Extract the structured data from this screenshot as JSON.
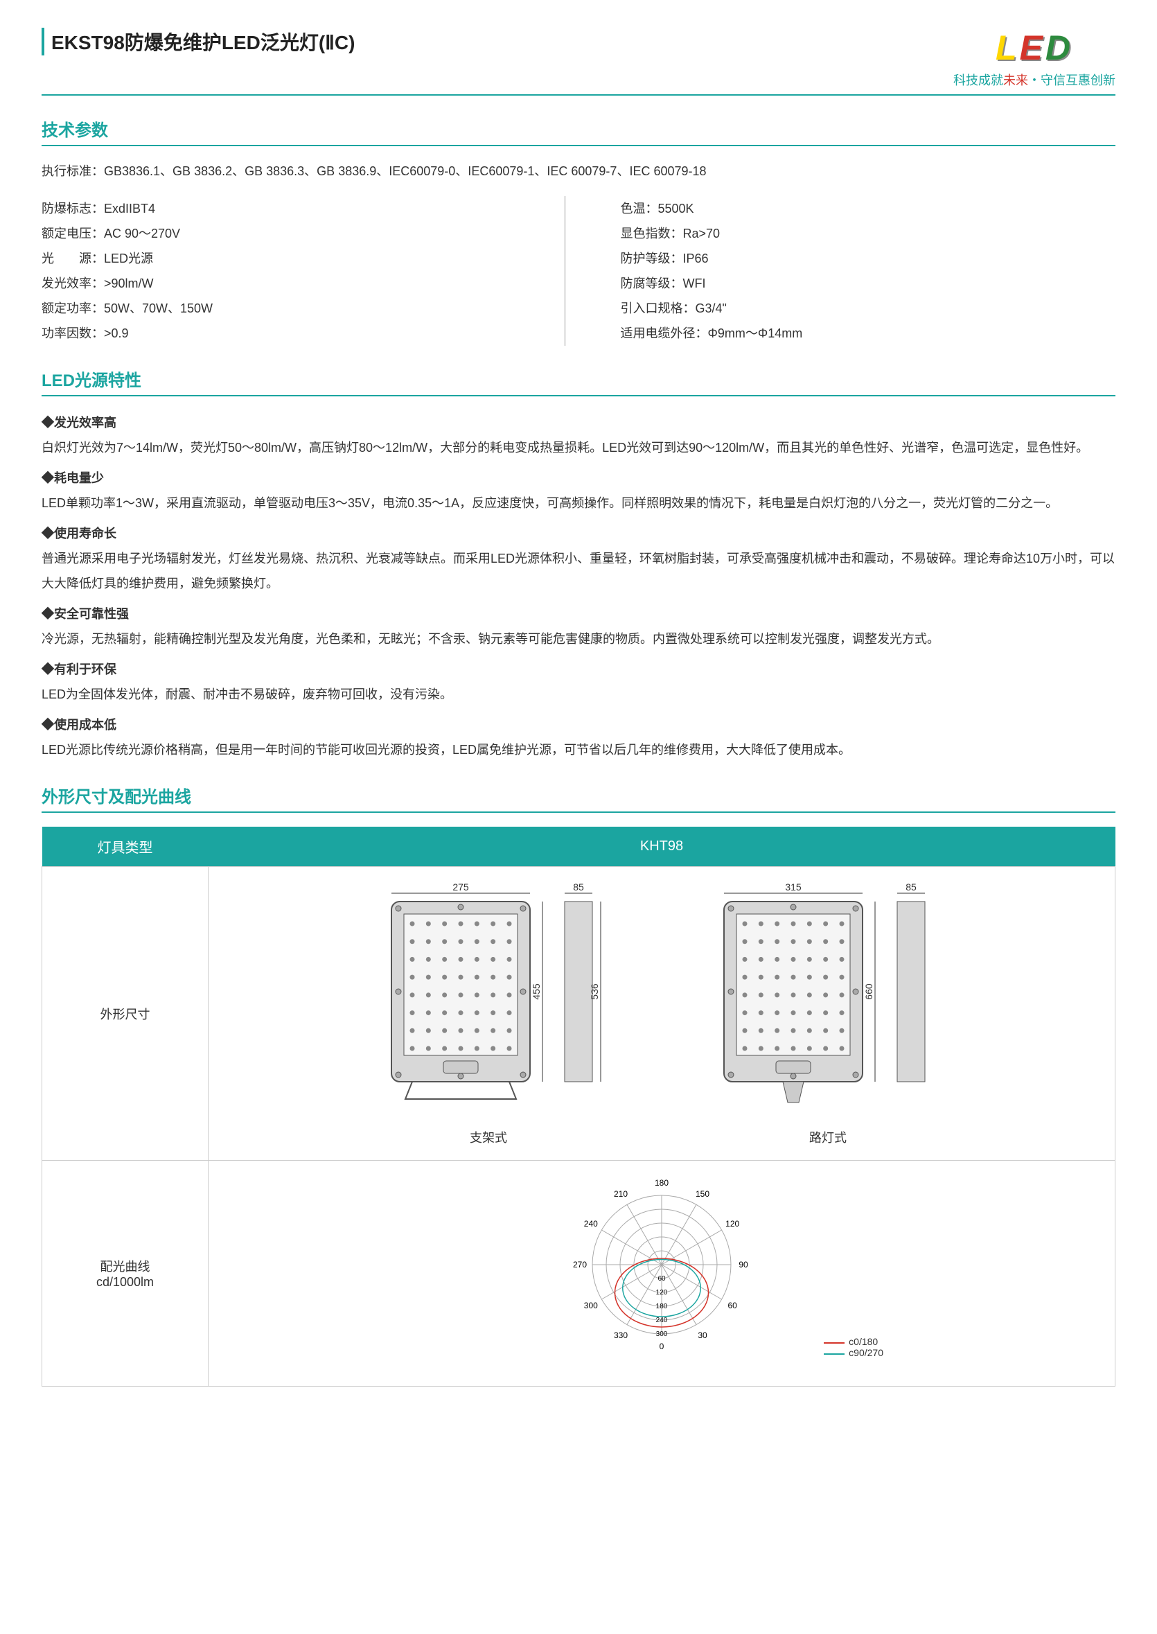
{
  "header": {
    "title": "EKST98防爆免维护LED泛光灯(ⅡC)",
    "logo_l": "L",
    "logo_e": "E",
    "logo_d": "D",
    "slogan_pre": "科技成就",
    "slogan_red": "未来",
    "slogan_post": "・守信互惠创新"
  },
  "sections": {
    "tech": "技术参数",
    "led": "LED光源特性",
    "dim": "外形尺寸及配光曲线"
  },
  "standard": "执行标准：GB3836.1、GB 3836.2、GB 3836.3、GB 3836.9、IEC60079-0、IEC60079-1、IEC 60079-7、IEC 60079-18",
  "params_left": [
    "防爆标志：ExdIIBT4",
    "额定电压：AC 90～270V",
    "光　　源：LED光源",
    "发光效率：>90lm/W",
    "额定功率：50W、70W、150W",
    "功率因数：>0.9"
  ],
  "params_right": [
    "色温：5500K",
    "显色指数：Ra>70",
    "防护等级：IP66",
    "防腐等级：WFI",
    "引入口规格：G3/4\"",
    "适用电缆外径：Φ9mm～Φ14mm"
  ],
  "features": [
    {
      "h": "◆发光效率高",
      "t": "白炽灯光效为7～14lm/W，荧光灯50～80lm/W，高压钠灯80～12lm/W，大部分的耗电变成热量损耗。LED光效可到达90～120lm/W，而且其光的单色性好、光谱窄，色温可选定，显色性好。"
    },
    {
      "h": "◆耗电量少",
      "t": "LED单颗功率1～3W，采用直流驱动，单管驱动电压3～35V，电流0.35～1A，反应速度快，可高频操作。同样照明效果的情况下，耗电量是白炽灯泡的八分之一，荧光灯管的二分之一。"
    },
    {
      "h": "◆使用寿命长",
      "t": "普通光源采用电子光场辐射发光，灯丝发光易烧、热沉积、光衰减等缺点。而采用LED光源体积小、重量轻，环氧树脂封装，可承受高强度机械冲击和震动，不易破碎。理论寿命达10万小时，可以大大降低灯具的维护费用，避免频繁换灯。"
    },
    {
      "h": "◆安全可靠性强",
      "t": "冷光源，无热辐射，能精确控制光型及发光角度，光色柔和，无眩光；不含汞、钠元素等可能危害健康的物质。内置微处理系统可以控制发光强度，调整发光方式。"
    },
    {
      "h": "◆有利于环保",
      "t": "LED为全固体发光体，耐震、耐冲击不易破碎，废弃物可回收，没有污染。"
    },
    {
      "h": "◆使用成本低",
      "t": "LED光源比传统光源价格稍高，但是用一年时间的节能可收回光源的投资，LED属免维护光源，可节省以后几年的维修费用，大大降低了使用成本。"
    }
  ],
  "table": {
    "h1": "灯具类型",
    "h2": "KHT98",
    "row1": "外形尺寸",
    "row2": "配光曲线\ncd/1000lm",
    "d1_label": "支架式",
    "d2_label": "路灯式"
  },
  "diagrams": {
    "d1": {
      "w": "275",
      "w2": "85",
      "h": "455",
      "h2": "536",
      "cols": 7,
      "rows": 8
    },
    "d2": {
      "w": "315",
      "w2": "85",
      "h": "660",
      "cols": 7,
      "rows": 8
    }
  },
  "polar": {
    "angles": [
      "180",
      "150",
      "120",
      "90",
      "60",
      "30",
      "0",
      "330",
      "300",
      "270",
      "240",
      "210"
    ],
    "rings": [
      "60",
      "120",
      "180",
      "240",
      "300"
    ],
    "legend": [
      {
        "color": "#d4342a",
        "label": "c0/180"
      },
      {
        "color": "#1ba5a0",
        "label": "c90/270"
      }
    ]
  },
  "colors": {
    "accent": "#1ba5a0",
    "red": "#d4342a",
    "gray": "#888"
  }
}
